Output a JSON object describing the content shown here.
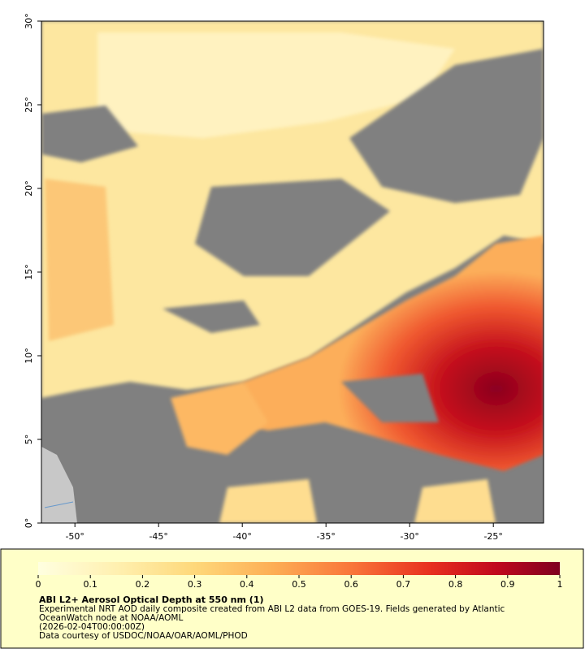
{
  "map": {
    "xlim": [
      -52,
      -22
    ],
    "ylim": [
      0,
      30
    ],
    "xticks": [
      {
        "value": -50,
        "label": "-50°"
      },
      {
        "value": -45,
        "label": "-45°"
      },
      {
        "value": -40,
        "label": "-40°"
      },
      {
        "value": -35,
        "label": "-35°"
      },
      {
        "value": -30,
        "label": "-30°"
      },
      {
        "value": -25,
        "label": "-25°"
      }
    ],
    "yticks": [
      {
        "value": 0,
        "label": "0°"
      },
      {
        "value": 5,
        "label": "5°"
      },
      {
        "value": 10,
        "label": "10°"
      },
      {
        "value": 15,
        "label": "15°"
      },
      {
        "value": 20,
        "label": "20°"
      },
      {
        "value": 25,
        "label": "25°"
      },
      {
        "value": 30,
        "label": "30°"
      }
    ]
  },
  "colorbar": {
    "lim": [
      0,
      1
    ],
    "ticks": [
      0,
      0.1,
      0.2,
      0.3,
      0.4,
      0.5,
      0.6,
      0.7,
      0.8,
      0.9,
      1
    ]
  },
  "caption": {
    "title": "ABI L2+ Aerosol Optical Depth at 550 nm (1)",
    "lines": [
      "Experimental NRT AOD daily composite created from ABI L2 data from GOES-19. Fields generated by Atlantic",
      "OceanWatch node at NOAA/AOML",
      "(2026-02-04T00:00:00Z)",
      "Data courtesy of USDOC/NOAA/OAR/AOML/PHOD"
    ]
  }
}
